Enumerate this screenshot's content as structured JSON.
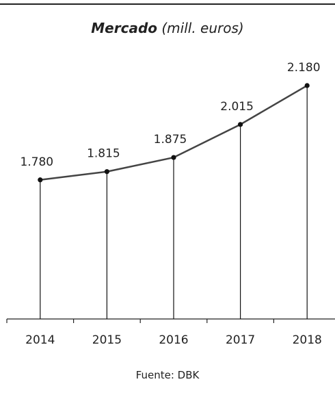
{
  "chart_data": {
    "type": "line",
    "title": "Mercado",
    "subtitle": "(mill. euros)",
    "categories": [
      "2014",
      "2015",
      "2016",
      "2017",
      "2018"
    ],
    "values": [
      1780,
      1815,
      1875,
      2015,
      2180
    ],
    "data_labels": [
      "1.780",
      "1.815",
      "1.875",
      "2.015",
      "2.180"
    ],
    "ylim": [
      1190,
      2180
    ],
    "grid": false,
    "xlabel": "",
    "ylabel": "",
    "colors": {
      "line": "#444444",
      "markers": "#111111",
      "drop_lines": "#111111",
      "axis": "#222222"
    }
  },
  "source": "Fuente: DBK"
}
